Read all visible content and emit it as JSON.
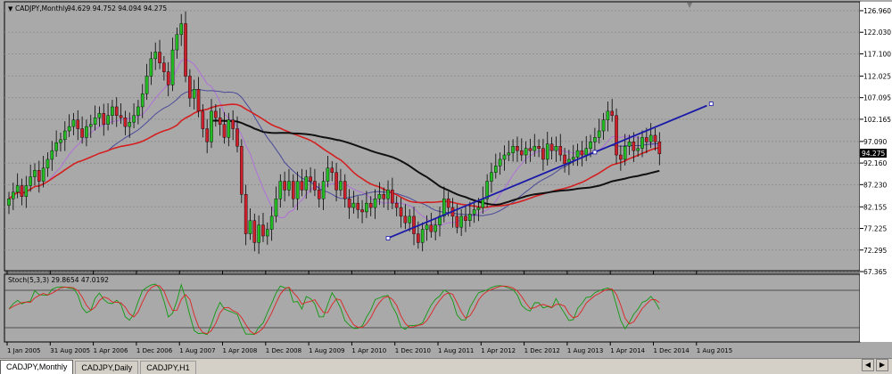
{
  "window": {
    "symbol_label": "CADJPY,Monthly",
    "ohlc_label": "94.629 94.752 94.094 94.275",
    "current_price": "94.275"
  },
  "price_axis": {
    "labels": [
      "126.960",
      "122.030",
      "117.100",
      "112.025",
      "107.095",
      "102.165",
      "97.090",
      "92.160",
      "87.230",
      "82.155",
      "77.225",
      "72.295",
      "67.365"
    ]
  },
  "indicator": {
    "label": "Stoch(5,3,3) 29.8654 47.0192",
    "levels": [
      "80",
      "20"
    ],
    "k_value": 29.8654,
    "d_value": 47.0192
  },
  "time_axis": {
    "labels": [
      "1 Jan 2005",
      "31 Aug 2005",
      "1 Apr 2006",
      "1 Dec 2006",
      "1 Aug 2007",
      "1 Apr 2008",
      "1 Dec 2008",
      "1 Aug 2009",
      "1 Apr 2010",
      "1 Dec 2010",
      "1 Aug 2011",
      "1 Apr 2012",
      "1 Dec 2012",
      "1 Aug 2013",
      "1 Apr 2014",
      "1 Dec 2014",
      "1 Aug 2015"
    ]
  },
  "tabs": [
    {
      "label": "CADJPY,Monthly",
      "active": true
    },
    {
      "label": "CADJPY,Daily",
      "active": false
    },
    {
      "label": "CADJPY,H1",
      "active": false
    }
  ],
  "colors": {
    "background": "#a9a9a9",
    "bull": "#22bb22",
    "bear": "#cc1f2a",
    "ma_red": "#d42020",
    "ma_blue": "#4a4a9a",
    "ma_violet": "#b070d8",
    "ma_black": "#111111",
    "trendline": "#1a1aa8",
    "stoch_k": "#119911",
    "stoch_d": "#dd2222"
  },
  "chart_data": {
    "type": "candlestick",
    "timeframe": "Monthly",
    "ylim": [
      67.365,
      126.96
    ],
    "first_bar_month": "2005-01",
    "closes": [
      84.0,
      85.5,
      87.0,
      84.5,
      87.0,
      89.0,
      90.5,
      88.0,
      91.0,
      93.0,
      95.0,
      96.8,
      97.5,
      99.5,
      100.5,
      102.0,
      100.0,
      98.0,
      100.5,
      101.0,
      102.5,
      103.5,
      101.0,
      103.0,
      105.0,
      103.0,
      102.5,
      100.5,
      101.5,
      103.0,
      105.0,
      108.0,
      112.0,
      116.0,
      117.5,
      115.0,
      113.0,
      110.0,
      118.0,
      121.5,
      124.0,
      112.0,
      107.0,
      109.0,
      104.0,
      100.0,
      97.0,
      104.0,
      102.5,
      101.0,
      98.0,
      102.0,
      100.0,
      96.0,
      85.0,
      76.0,
      79.0,
      74.0,
      78.0,
      75.5,
      77.0,
      80.0,
      84.0,
      88.0,
      86.0,
      88.0,
      84.0,
      88.0,
      86.0,
      89.0,
      88.0,
      86.0,
      84.0,
      88.0,
      91.0,
      90.0,
      86.0,
      88.0,
      84.0,
      82.0,
      83.0,
      81.5,
      81.0,
      83.0,
      82.0,
      84.0,
      85.0,
      84.0,
      86.0,
      83.0,
      82.0,
      80.0,
      78.5,
      80.0,
      76.0,
      74.0,
      77.0,
      78.0,
      76.5,
      78.0,
      80.0,
      84.0,
      82.0,
      80.0,
      77.5,
      80.0,
      79.0,
      80.5,
      81.5,
      82.0,
      84.0,
      88.0,
      90.0,
      91.5,
      93.0,
      94.0,
      94.5,
      96.0,
      95.0,
      94.0,
      95.5,
      95.0,
      96.0,
      95.5,
      93.0,
      96.5,
      95.0,
      96.0,
      94.0,
      92.0,
      93.0,
      93.5,
      95.0,
      94.0,
      95.5,
      97.0,
      98.0,
      99.5,
      102.0,
      104.0,
      103.0,
      94.0,
      93.0,
      96.0,
      97.0,
      95.0,
      95.5,
      98.0,
      97.0,
      98.5,
      97.0,
      94.275
    ],
    "stochastic": {
      "params": "5,3,3",
      "k_last": 29.8654,
      "d_last": 47.0192,
      "levels": [
        80,
        20
      ]
    },
    "moving_averages": [
      "red",
      "blue",
      "violet",
      "black"
    ],
    "trendline_from": [
      "2012-05",
      75.0
    ],
    "trendline_to": [
      "2015-12",
      112.0
    ]
  }
}
